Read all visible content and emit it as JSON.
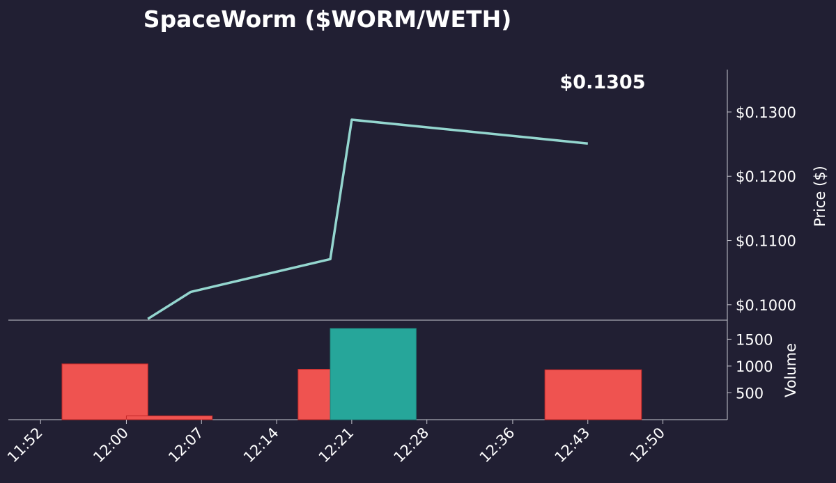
{
  "chart_data": [
    {
      "type": "line",
      "title": "SpaceWorm ($WORM/WETH)",
      "current_price_label": "$0.1305",
      "ylabel": "Price ($)",
      "ylim": [
        0.0976,
        0.1366
      ],
      "y_ticks": [
        0.1,
        0.11,
        0.12,
        0.13
      ],
      "y_tick_labels": [
        "$0.1000",
        "$0.1100",
        "$0.1200",
        "$0.1300"
      ],
      "line_color": "#94d6cf",
      "series": [
        {
          "x": [
            "12:02",
            "12:06",
            "12:19",
            "12:21",
            "12:43"
          ],
          "values": [
            0.0978,
            0.102,
            0.1071,
            0.1288,
            0.1251
          ]
        }
      ]
    },
    {
      "type": "bar",
      "ylabel": "Volume",
      "ylim": [
        0,
        1700
      ],
      "y_ticks": [
        500,
        1000,
        1500
      ],
      "y_tick_labels": [
        "500",
        "1000",
        "1500"
      ],
      "x_range": [
        "11:49",
        "12:56"
      ],
      "x_ticks": [
        "11:52",
        "12:00",
        "12:07",
        "12:14",
        "12:21",
        "12:28",
        "12:36",
        "12:43",
        "12:50"
      ],
      "colors": {
        "sell": "#ef5350",
        "buy": "#26a69a"
      },
      "bars": [
        {
          "start": "11:54",
          "end": "12:02",
          "value": 1040,
          "side": "sell"
        },
        {
          "start": "12:00",
          "end": "12:08",
          "value": 70,
          "side": "sell"
        },
        {
          "start": "12:16",
          "end": "12:19",
          "value": 940,
          "side": "sell"
        },
        {
          "start": "12:19",
          "end": "12:27",
          "value": 1700,
          "side": "buy"
        },
        {
          "start": "12:39",
          "end": "12:48",
          "value": 930,
          "side": "sell"
        }
      ]
    }
  ]
}
